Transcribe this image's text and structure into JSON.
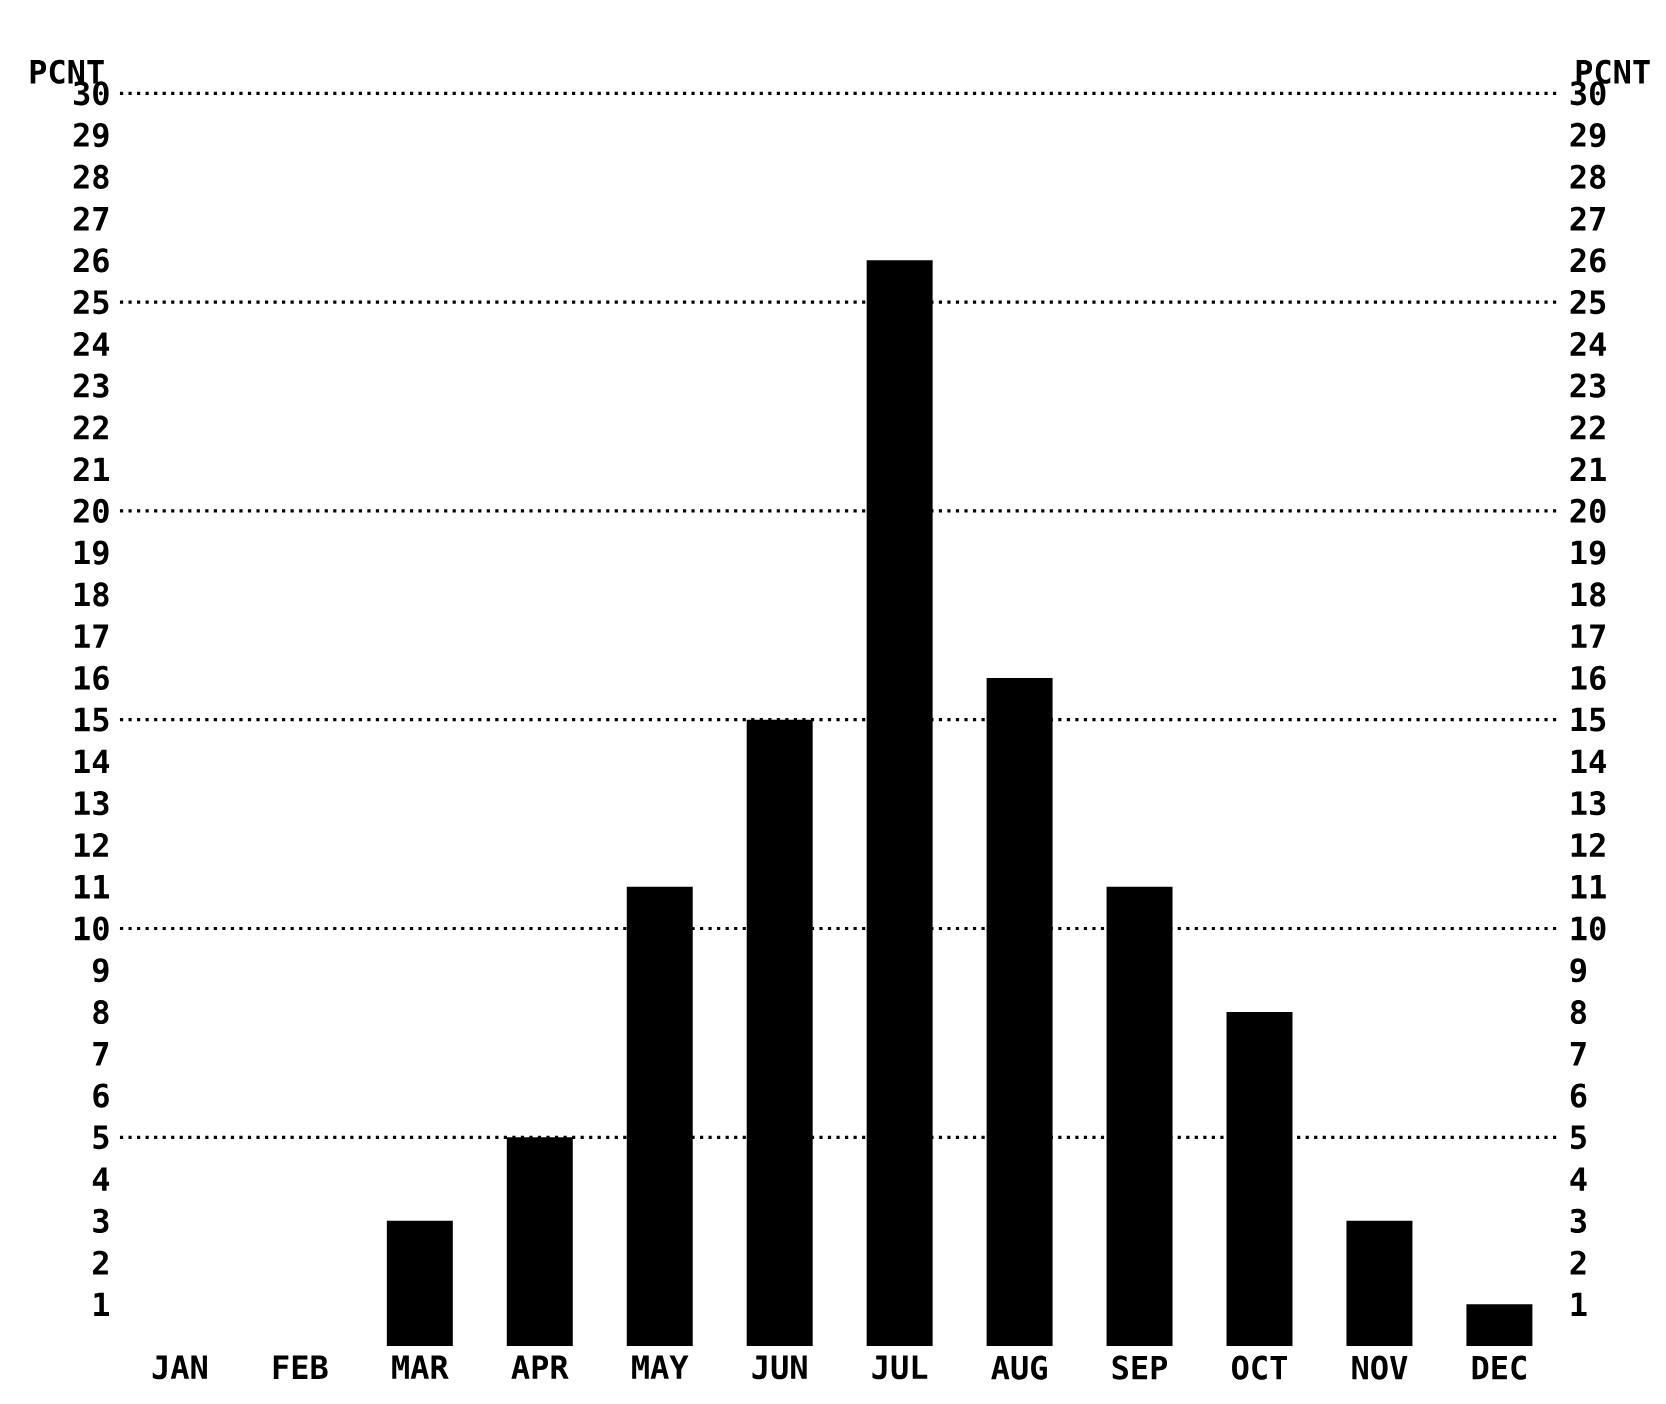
{
  "chart_data": {
    "type": "bar",
    "ylabel": "PCNT",
    "y2label": "PCNT",
    "categories": [
      "JAN",
      "FEB",
      "MAR",
      "APR",
      "MAY",
      "JUN",
      "JUL",
      "AUG",
      "SEP",
      "OCT",
      "NOV",
      "DEC"
    ],
    "values": [
      0,
      0,
      3,
      5,
      11,
      15,
      26,
      16,
      11,
      8,
      3,
      1
    ],
    "color": "#000000",
    "ylim": [
      0,
      30
    ],
    "yticks": [
      1,
      2,
      3,
      4,
      5,
      6,
      7,
      8,
      9,
      10,
      11,
      12,
      13,
      14,
      15,
      16,
      17,
      18,
      19,
      20,
      21,
      22,
      23,
      24,
      25,
      26,
      27,
      28,
      29,
      30
    ],
    "y2lim": [
      0,
      30
    ],
    "y2ticks": [
      1,
      2,
      3,
      4,
      5,
      6,
      7,
      8,
      9,
      10,
      11,
      12,
      13,
      14,
      15,
      16,
      17,
      18,
      19,
      20,
      21,
      22,
      23,
      24,
      25,
      26,
      27,
      28,
      29,
      30
    ],
    "ref_lines": [
      {
        "axis": "y",
        "value": 5,
        "line_style": "dotted"
      },
      {
        "axis": "y",
        "value": 10,
        "line_style": "dotted"
      },
      {
        "axis": "y",
        "value": 15,
        "line_style": "dotted"
      },
      {
        "axis": "y",
        "value": 20,
        "line_style": "dotted"
      },
      {
        "axis": "y",
        "value": 25,
        "line_style": "dotted"
      }
    ]
  }
}
